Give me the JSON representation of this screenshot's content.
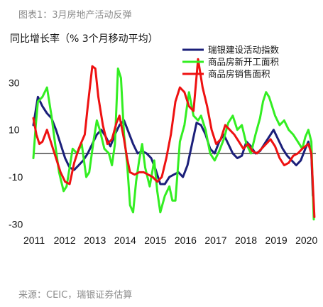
{
  "figure_title": "图表1：3月房地产活动反弹",
  "source_note": "来源：CEIC，瑞银证券估算",
  "colors": {
    "瑞银建设活动指数": "#1b1f7a",
    "商品房新开工面积": "#33ee22",
    "商品房销售面积": "#ee1111"
  },
  "chart_data": {
    "type": "line",
    "ylabel": "同比增长率（% 3个月移动平均）",
    "ylim": [
      -32,
      44
    ],
    "xlim": [
      2011.0,
      2020.35
    ],
    "y_ticks": [
      30,
      10,
      -10,
      -30
    ],
    "x_ticks": [
      2011,
      2012,
      2013,
      2014,
      2015,
      2016,
      2017,
      2018,
      2019,
      2020
    ],
    "zero_line": true,
    "legend_position": "top-right",
    "series": [
      {
        "name": "瑞银建设活动指数",
        "x": [
          2011.0,
          2011.15,
          2011.3,
          2011.45,
          2011.6,
          2011.75,
          2011.9,
          2012.05,
          2012.2,
          2012.35,
          2012.5,
          2012.65,
          2012.8,
          2012.95,
          2013.1,
          2013.25,
          2013.4,
          2013.55,
          2013.7,
          2013.85,
          2014.0,
          2014.15,
          2014.3,
          2014.45,
          2014.6,
          2014.75,
          2014.9,
          2015.05,
          2015.2,
          2015.35,
          2015.5,
          2015.65,
          2015.8,
          2015.95,
          2016.1,
          2016.25,
          2016.4,
          2016.55,
          2016.7,
          2016.85,
          2017.0,
          2017.15,
          2017.3,
          2017.45,
          2017.6,
          2017.75,
          2017.9,
          2018.05,
          2018.2,
          2018.35,
          2018.5,
          2018.65,
          2018.8,
          2018.95,
          2019.1,
          2019.25,
          2019.4,
          2019.55,
          2019.7,
          2019.85,
          2020.0,
          2020.1,
          2020.2
        ],
        "y": [
          12,
          24,
          20,
          17,
          15,
          10,
          4,
          -2,
          -6,
          -7,
          -5,
          -3,
          0,
          4,
          8,
          10,
          7,
          3,
          8,
          12,
          14,
          9,
          4,
          0,
          1,
          0,
          -2,
          -7,
          -13,
          -13,
          -10,
          -9,
          -8,
          -10,
          -5,
          4,
          13,
          12,
          8,
          2,
          0,
          5,
          8,
          4,
          0,
          -2,
          -1,
          5,
          3,
          0,
          1,
          4,
          7,
          10,
          6,
          2,
          -1,
          -3,
          -5,
          -3,
          2,
          5,
          0
        ],
        "end": [
          2020.25,
          -18
        ]
      },
      {
        "name": "商品房新开工面积",
        "x": [
          2011.0,
          2011.08,
          2011.15,
          2011.3,
          2011.45,
          2011.6,
          2011.7,
          2011.85,
          2012.0,
          2012.1,
          2012.2,
          2012.3,
          2012.45,
          2012.6,
          2012.75,
          2012.85,
          2013.0,
          2013.1,
          2013.2,
          2013.35,
          2013.5,
          2013.6,
          2013.7,
          2013.8,
          2013.9,
          2014.0,
          2014.1,
          2014.2,
          2014.3,
          2014.4,
          2014.5,
          2014.6,
          2014.7,
          2014.85,
          2015.0,
          2015.1,
          2015.2,
          2015.35,
          2015.5,
          2015.6,
          2015.7,
          2015.85,
          2016.0,
          2016.15,
          2016.3,
          2016.45,
          2016.55,
          2016.7,
          2016.85,
          2017.0,
          2017.15,
          2017.3,
          2017.45,
          2017.6,
          2017.75,
          2017.9,
          2018.05,
          2018.2,
          2018.35,
          2018.5,
          2018.6,
          2018.7,
          2018.8,
          2018.9,
          2019.0,
          2019.15,
          2019.3,
          2019.45,
          2019.6,
          2019.75,
          2019.9,
          2020.0,
          2020.1,
          2020.2
        ],
        "y": [
          -2,
          12,
          22,
          24,
          28,
          16,
          6,
          -8,
          -16,
          -14,
          -6,
          2,
          0,
          4,
          -10,
          -8,
          6,
          14,
          10,
          2,
          0,
          -5,
          4,
          36,
          32,
          8,
          -4,
          -22,
          -25,
          -12,
          -3,
          4,
          -6,
          -14,
          -3,
          -16,
          -25,
          -18,
          -14,
          -20,
          -20,
          5,
          12,
          26,
          16,
          14,
          16,
          10,
          0,
          -3,
          1,
          6,
          13,
          16,
          10,
          12,
          4,
          0,
          8,
          15,
          22,
          26,
          24,
          20,
          16,
          12,
          14,
          10,
          8,
          5,
          2,
          7,
          10,
          5
        ],
        "end": [
          2020.28,
          -28
        ]
      },
      {
        "name": "商品房销售面积",
        "x": [
          2011.0,
          2011.1,
          2011.2,
          2011.3,
          2011.45,
          2011.6,
          2011.75,
          2011.9,
          2012.05,
          2012.2,
          2012.35,
          2012.5,
          2012.6,
          2012.7,
          2012.8,
          2012.95,
          2013.05,
          2013.15,
          2013.3,
          2013.45,
          2013.6,
          2013.75,
          2013.85,
          2014.0,
          2014.1,
          2014.2,
          2014.35,
          2014.5,
          2014.65,
          2014.8,
          2014.95,
          2015.1,
          2015.25,
          2015.4,
          2015.55,
          2015.7,
          2015.85,
          2016.0,
          2016.15,
          2016.3,
          2016.45,
          2016.6,
          2016.75,
          2016.9,
          2017.05,
          2017.2,
          2017.35,
          2017.5,
          2017.65,
          2017.8,
          2017.95,
          2018.1,
          2018.25,
          2018.4,
          2018.55,
          2018.7,
          2018.85,
          2019.0,
          2019.15,
          2019.3,
          2019.45,
          2019.6,
          2019.75,
          2019.9,
          2020.0,
          2020.1,
          2020.2
        ],
        "y": [
          15,
          8,
          4,
          5,
          10,
          4,
          -2,
          -8,
          -12,
          -13,
          -4,
          2,
          5,
          8,
          20,
          37,
          36,
          24,
          12,
          4,
          6,
          13,
          16,
          6,
          -2,
          -8,
          -9,
          -8,
          -8,
          -9,
          -10,
          -12,
          -10,
          -2,
          8,
          22,
          28,
          26,
          20,
          18,
          40,
          28,
          20,
          10,
          4,
          6,
          12,
          10,
          8,
          5,
          2,
          4,
          1,
          0,
          2,
          4,
          6,
          3,
          -2,
          -5,
          -4,
          -1,
          0,
          2,
          3,
          4,
          0
        ],
        "end": [
          2020.3,
          -27
        ]
      }
    ]
  }
}
